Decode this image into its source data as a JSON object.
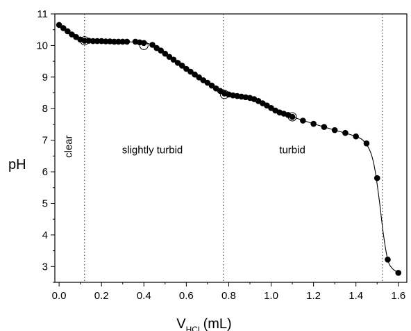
{
  "chart_data": {
    "type": "scatter",
    "title": "",
    "xlabel": {
      "main": "V",
      "sub": "HCl",
      "unit": "(mL)"
    },
    "ylabel": "pH",
    "xlim": [
      -0.02,
      1.64
    ],
    "ylim": [
      2.5,
      11.0
    ],
    "xticks": [
      0.0,
      0.2,
      0.4,
      0.6,
      0.8,
      1.0,
      1.2,
      1.4,
      1.6
    ],
    "yticks": [
      3,
      4,
      5,
      6,
      7,
      8,
      9,
      10,
      11
    ],
    "xtick_labels": [
      "0.0",
      "0.2",
      "0.4",
      "0.6",
      "0.8",
      "1.0",
      "1.2",
      "1.4",
      "1.6"
    ],
    "ytick_labels": [
      "3",
      "4",
      "5",
      "6",
      "7",
      "8",
      "9",
      "10",
      "11"
    ],
    "grid": false,
    "series": [
      {
        "marker": "filled-circle",
        "x": [
          0.0,
          0.02,
          0.04,
          0.06,
          0.08,
          0.1,
          0.12,
          0.14,
          0.16,
          0.18,
          0.2,
          0.22,
          0.24,
          0.26,
          0.28,
          0.3,
          0.32,
          0.36,
          0.38,
          0.4,
          0.44,
          0.46,
          0.48,
          0.5,
          0.52,
          0.54,
          0.56,
          0.58,
          0.6,
          0.62,
          0.64,
          0.66,
          0.68,
          0.7,
          0.72,
          0.74,
          0.76,
          0.78,
          0.8,
          0.82,
          0.84,
          0.86,
          0.88,
          0.9,
          0.92,
          0.94,
          0.96,
          0.98,
          1.0,
          1.02,
          1.04,
          1.06,
          1.08,
          1.1,
          1.15,
          1.2,
          1.25,
          1.3,
          1.35,
          1.4,
          1.45,
          1.5,
          1.55,
          1.6
        ],
        "y": [
          10.65,
          10.55,
          10.45,
          10.35,
          10.27,
          10.19,
          10.15,
          10.15,
          10.14,
          10.14,
          10.14,
          10.13,
          10.13,
          10.12,
          10.12,
          10.12,
          10.12,
          10.12,
          10.1,
          10.08,
          10.02,
          9.92,
          9.84,
          9.74,
          9.64,
          9.55,
          9.45,
          9.36,
          9.26,
          9.17,
          9.08,
          8.99,
          8.9,
          8.82,
          8.73,
          8.64,
          8.56,
          8.48,
          8.45,
          8.42,
          8.4,
          8.38,
          8.36,
          8.34,
          8.3,
          8.24,
          8.17,
          8.1,
          8.02,
          7.94,
          7.88,
          7.84,
          7.8,
          7.74,
          7.62,
          7.52,
          7.42,
          7.32,
          7.23,
          7.12,
          6.9,
          5.8,
          3.22,
          2.8
        ]
      },
      {
        "marker": "open-circle",
        "x": [
          0.12,
          0.4,
          0.78,
          1.1
        ],
        "y": [
          10.15,
          10.0,
          8.45,
          7.74
        ]
      }
    ],
    "fit_curve": {
      "x": [
        0.0,
        0.06,
        0.12,
        0.2,
        0.3,
        0.38,
        0.44,
        0.5,
        0.6,
        0.7,
        0.78,
        0.84,
        0.9,
        0.96,
        1.02,
        1.1,
        1.2,
        1.3,
        1.4,
        1.44,
        1.47,
        1.49,
        1.51,
        1.53,
        1.55,
        1.57,
        1.6
      ],
      "y": [
        10.65,
        10.35,
        10.15,
        10.14,
        10.12,
        10.1,
        10.02,
        9.74,
        9.26,
        8.82,
        8.48,
        8.4,
        8.34,
        8.17,
        7.94,
        7.74,
        7.52,
        7.32,
        7.12,
        6.95,
        6.6,
        6.05,
        5.1,
        4.0,
        3.22,
        2.95,
        2.8
      ]
    },
    "boundaries": [
      0.12,
      0.775,
      1.525
    ],
    "regions": [
      {
        "label": "clear",
        "x": 0.06,
        "y": 6.8,
        "rotate": true
      },
      {
        "label": "slightly turbid",
        "x": 0.44,
        "y": 6.58,
        "rotate": false
      },
      {
        "label": "turbid",
        "x": 1.1,
        "y": 6.58,
        "rotate": false
      }
    ]
  }
}
